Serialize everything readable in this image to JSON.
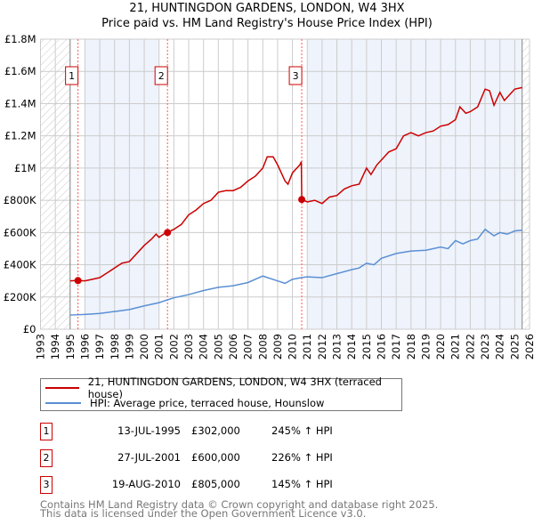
{
  "chart_data": {
    "type": "line",
    "title": "21, HUNTINGDON GARDENS, LONDON, W4 3HX",
    "subtitle": "Price paid vs. HM Land Registry's House Price Index (HPI)",
    "xlim": [
      1993,
      2026
    ],
    "ylim": [
      0,
      1800000
    ],
    "x_ticks": [
      "1993",
      "1994",
      "1995",
      "1996",
      "1997",
      "1998",
      "1999",
      "2000",
      "2001",
      "2002",
      "2003",
      "2004",
      "2005",
      "2006",
      "2007",
      "2008",
      "2009",
      "2010",
      "2011",
      "2012",
      "2013",
      "2014",
      "2015",
      "2016",
      "2017",
      "2018",
      "2019",
      "2020",
      "2021",
      "2022",
      "2023",
      "2024",
      "2025",
      "2026"
    ],
    "y_ticks": [
      {
        "v": 0,
        "label": "£0"
      },
      {
        "v": 200000,
        "label": "£200K"
      },
      {
        "v": 400000,
        "label": "£400K"
      },
      {
        "v": 600000,
        "label": "£600K"
      },
      {
        "v": 800000,
        "label": "£800K"
      },
      {
        "v": 1000000,
        "label": "£1M"
      },
      {
        "v": 1200000,
        "label": "£1.2M"
      },
      {
        "v": 1400000,
        "label": "£1.4M"
      },
      {
        "v": 1600000,
        "label": "£1.6M"
      },
      {
        "v": 1800000,
        "label": "£1.8M"
      }
    ],
    "grid": true,
    "colors": {
      "property": "#cc0000",
      "hpi": "#5b8fd4"
    },
    "series": [
      {
        "name": "21, HUNTINGDON GARDENS, LONDON, W4 3HX (terraced house)",
        "x": [
          1995.0,
          1995.5,
          1996.0,
          1996.5,
          1997,
          1997.5,
          1998,
          1998.5,
          1999,
          1999.5,
          2000,
          2000.5,
          2000.8,
          2001.0,
          2001.3,
          2001.57,
          2002,
          2002.5,
          2003,
          2003.5,
          2004,
          2004.5,
          2005,
          2005.5,
          2006,
          2006.5,
          2007,
          2007.5,
          2008,
          2008.3,
          2008.7,
          2009,
          2009.5,
          2009.7,
          2010,
          2010.5,
          2010.6,
          2010.63,
          2011,
          2011.5,
          2012,
          2012.5,
          2013,
          2013.5,
          2014,
          2014.5,
          2015,
          2015.3,
          2015.7,
          2016,
          2016.5,
          2017,
          2017.5,
          2018,
          2018.5,
          2019,
          2019.5,
          2020,
          2020.5,
          2021,
          2021.3,
          2021.7,
          2022,
          2022.5,
          2023,
          2023.3,
          2023.6,
          2024,
          2024.3,
          2024.7,
          2025,
          2025.5
        ],
        "y": [
          300000,
          302000,
          300000,
          310000,
          320000,
          350000,
          380000,
          410000,
          420000,
          470000,
          520000,
          560000,
          590000,
          570000,
          590000,
          600000,
          620000,
          650000,
          710000,
          740000,
          780000,
          800000,
          850000,
          860000,
          860000,
          880000,
          920000,
          950000,
          1000000,
          1070000,
          1070000,
          1020000,
          920000,
          900000,
          970000,
          1020000,
          1040000,
          805000,
          790000,
          800000,
          780000,
          820000,
          830000,
          870000,
          890000,
          900000,
          1000000,
          960000,
          1020000,
          1050000,
          1100000,
          1120000,
          1200000,
          1220000,
          1200000,
          1220000,
          1230000,
          1260000,
          1270000,
          1300000,
          1380000,
          1340000,
          1350000,
          1380000,
          1490000,
          1480000,
          1390000,
          1470000,
          1420000,
          1460000,
          1490000,
          1500000
        ]
      },
      {
        "name": "HPI: Average price, terraced house, Hounslow",
        "x": [
          1995,
          1996,
          1997,
          1998,
          1999,
          2000,
          2001,
          2001.5,
          2002,
          2003,
          2004,
          2005,
          2006,
          2007,
          2008,
          2009,
          2009.5,
          2010,
          2010.6,
          2011,
          2012,
          2013,
          2014,
          2014.5,
          2015,
          2015.5,
          2016,
          2017,
          2018,
          2019,
          2020,
          2020.5,
          2021,
          2021.5,
          2022,
          2022.5,
          2023,
          2023.3,
          2023.6,
          2024,
          2024.5,
          2025,
          2025.5
        ],
        "y": [
          88000,
          92000,
          98000,
          110000,
          122000,
          145000,
          165000,
          180000,
          195000,
          215000,
          240000,
          260000,
          270000,
          290000,
          330000,
          300000,
          285000,
          310000,
          320000,
          325000,
          320000,
          345000,
          370000,
          380000,
          410000,
          400000,
          440000,
          470000,
          485000,
          490000,
          510000,
          500000,
          550000,
          530000,
          550000,
          560000,
          620000,
          600000,
          580000,
          600000,
          590000,
          610000,
          615000
        ]
      }
    ],
    "sales": [
      {
        "n": "1",
        "x": 1995.53,
        "y": 302000,
        "date": "13-JUL-1995",
        "price": "£302,000",
        "hpi": "245% ↑ HPI"
      },
      {
        "n": "2",
        "x": 2001.57,
        "y": 600000,
        "date": "27-JUL-2001",
        "price": "£600,000",
        "hpi": "226% ↑ HPI"
      },
      {
        "n": "3",
        "x": 2010.63,
        "y": 805000,
        "date": "19-AUG-2010",
        "price": "£805,000",
        "hpi": "145% ↑ HPI"
      }
    ],
    "shaded_ranges": [
      [
        1996,
        2001
      ],
      [
        2011,
        2025.5
      ]
    ],
    "hatched_ranges": [
      [
        1993,
        1995
      ],
      [
        2025.5,
        2026
      ]
    ]
  },
  "legend": {
    "property": "21, HUNTINGDON GARDENS, LONDON, W4 3HX (terraced house)",
    "hpi": "HPI: Average price, terraced house, Hounslow"
  },
  "footer": {
    "line1": "Contains HM Land Registry data © Crown copyright and database right 2025.",
    "line2": "This data is licensed under the Open Government Licence v3.0."
  }
}
